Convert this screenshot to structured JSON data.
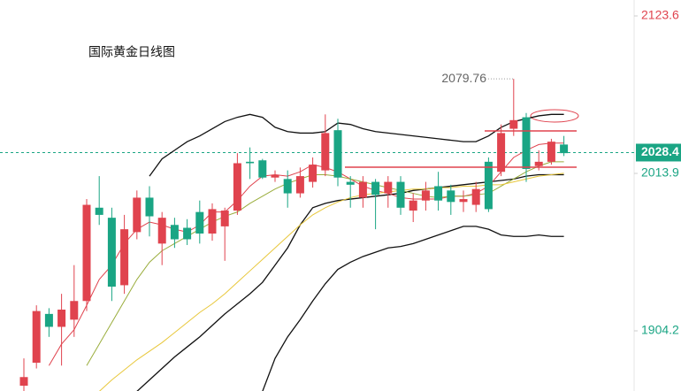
{
  "chart_data": {
    "type": "candlestick",
    "title": "国际黄金日线图",
    "up_color": "#e0434e",
    "down_color": "#1aa584",
    "ylim": [
      1862.3,
      2134.7
    ],
    "yticks": [
      2123.6,
      2013.9,
      1904.2
    ],
    "last_price": 2028.4,
    "open": [
      1866,
      1882,
      1916,
      1907,
      1912,
      1925,
      1990,
      1983,
      1936,
      1973,
      1997,
      1965,
      1978,
      1976,
      1987,
      1972,
      1977,
      1988,
      2022,
      2023,
      2011,
      2010,
      2000,
      2008,
      2016,
      2044,
      2008,
      1997,
      2008,
      2000,
      2008,
      1988,
      1995,
      2005,
      2002,
      1994,
      1992,
      2022,
      2015,
      2045,
      2053,
      2019,
      2022,
      2034
    ],
    "high": [
      1885,
      1922,
      1920,
      1930,
      1950,
      1996,
      2012,
      1990,
      1985,
      2002,
      2005,
      1987,
      1983,
      1982,
      1995,
      1993,
      1990,
      2028,
      2032,
      2024,
      2016,
      2016,
      2018,
      2025,
      2055,
      2052,
      2012,
      2012,
      2010,
      2012,
      2012,
      2000,
      2008,
      2015,
      2006,
      2002,
      2008,
      2025,
      2048,
      2079.76,
      2056,
      2030,
      2038,
      2040
    ],
    "low": [
      1862,
      1878,
      1900,
      1880,
      1900,
      1918,
      1978,
      1925,
      1930,
      1968,
      1970,
      1950,
      1962,
      1964,
      1965,
      1967,
      1953,
      1985,
      2010,
      2010,
      2008,
      1990,
      1997,
      2004,
      2012,
      2005,
      1990,
      1990,
      1975,
      1990,
      1985,
      1980,
      1988,
      1988,
      1985,
      1987,
      1987,
      1987,
      2012,
      2040,
      2008,
      2016,
      2020,
      2026
    ],
    "close": [
      1872,
      1918,
      1907,
      1919,
      1925,
      1992,
      1985,
      1935,
      1975,
      1997,
      1984,
      1983,
      1968,
      1968,
      1972,
      1989,
      1988,
      2021,
      2021,
      2011,
      2013,
      2000,
      2012,
      2020,
      2042,
      2011,
      2006,
      2008,
      1999,
      2008,
      1990,
      1995,
      2002,
      1995,
      1994,
      1996,
      2003,
      1989,
      2042,
      2051,
      2017,
      2022,
      2036,
      2028
    ],
    "series": [
      {
        "name": "upper",
        "color": "#111111",
        "values": [
          null,
          null,
          null,
          null,
          null,
          null,
          null,
          null,
          null,
          null,
          2012,
          2024,
          2030,
          2036,
          2040,
          2045,
          2050,
          2053,
          2055,
          2053,
          2046,
          2043,
          2042,
          2042,
          2043,
          2049,
          2048,
          2045,
          2043,
          2042,
          2041,
          2040,
          2039,
          2038,
          2037,
          2036,
          2036,
          2040,
          2046,
          2050,
          2052,
          2054,
          2055,
          2055
        ]
      },
      {
        "name": "middle",
        "color": "#111111",
        "values": [
          null,
          null,
          null,
          null,
          null,
          null,
          null,
          null,
          null,
          1862,
          1870,
          1878,
          1886,
          1893,
          1900,
          1908,
          1916,
          1923,
          1930,
          1938,
          1950,
          1962,
          1978,
          1990,
          1993,
          1995,
          1996,
          1997,
          1998,
          1999,
          2000,
          2002,
          2003,
          2004,
          2005,
          2006,
          2007,
          2008,
          2009,
          2010,
          2012,
          2013,
          2013,
          2013
        ]
      },
      {
        "name": "lower",
        "color": "#111111",
        "values": [
          null,
          null,
          null,
          null,
          null,
          null,
          null,
          null,
          null,
          null,
          null,
          null,
          null,
          null,
          null,
          null,
          null,
          null,
          null,
          1862,
          1885,
          1900,
          1912,
          1925,
          1937,
          1947,
          1952,
          1956,
          1959,
          1962,
          1963,
          1965,
          1968,
          1971,
          1974,
          1977,
          1977,
          1975,
          1971,
          1970,
          1970,
          1971,
          1970,
          1970
        ]
      },
      {
        "name": "ma5",
        "color": "#e0434e",
        "values": [
          null,
          null,
          1880,
          1895,
          1905,
          1922,
          1940,
          1950,
          1965,
          1975,
          1980,
          1978,
          1975,
          1973,
          1978,
          1987,
          1987,
          1995,
          2005,
          2012,
          2013,
          2012,
          2015,
          2020,
          2018,
          2015,
          2010,
          2005,
          2002,
          2000,
          1997,
          1996,
          1996,
          1996,
          1998,
          1998,
          2000,
          2005,
          2015,
          2025,
          2030,
          2034,
          2035,
          2035
        ]
      },
      {
        "name": "ma10",
        "color": "#9aad3c",
        "values": [
          null,
          null,
          null,
          null,
          null,
          1880,
          1895,
          1910,
          1925,
          1940,
          1952,
          1960,
          1965,
          1970,
          1975,
          1980,
          1984,
          1987,
          1993,
          1998,
          2003,
          2007,
          2010,
          2013,
          2013,
          2012,
          2010,
          2008,
          2006,
          2004,
          2002,
          2000,
          1998,
          1997,
          1998,
          1998,
          1999,
          2000,
          2005,
          2010,
          2015,
          2019,
          2022,
          2022
        ]
      },
      {
        "name": "ma20",
        "color": "#e8c73a",
        "values": [
          null,
          null,
          null,
          null,
          null,
          null,
          1862,
          1870,
          1877,
          1884,
          1890,
          1896,
          1903,
          1910,
          1917,
          1923,
          1930,
          1938,
          1946,
          1954,
          1962,
          1970,
          1978,
          1985,
          1990,
          1994,
          1997,
          1999,
          2000,
          2001,
          2002,
          2003,
          2003,
          2004,
          2004,
          2005,
          2005,
          2006,
          2006,
          2008,
          2010,
          2012,
          2013,
          2014
        ]
      }
    ],
    "levels": [
      2043.5,
      2018.2
    ],
    "annotation": {
      "text": "2079.76",
      "value": 2079.76
    }
  }
}
